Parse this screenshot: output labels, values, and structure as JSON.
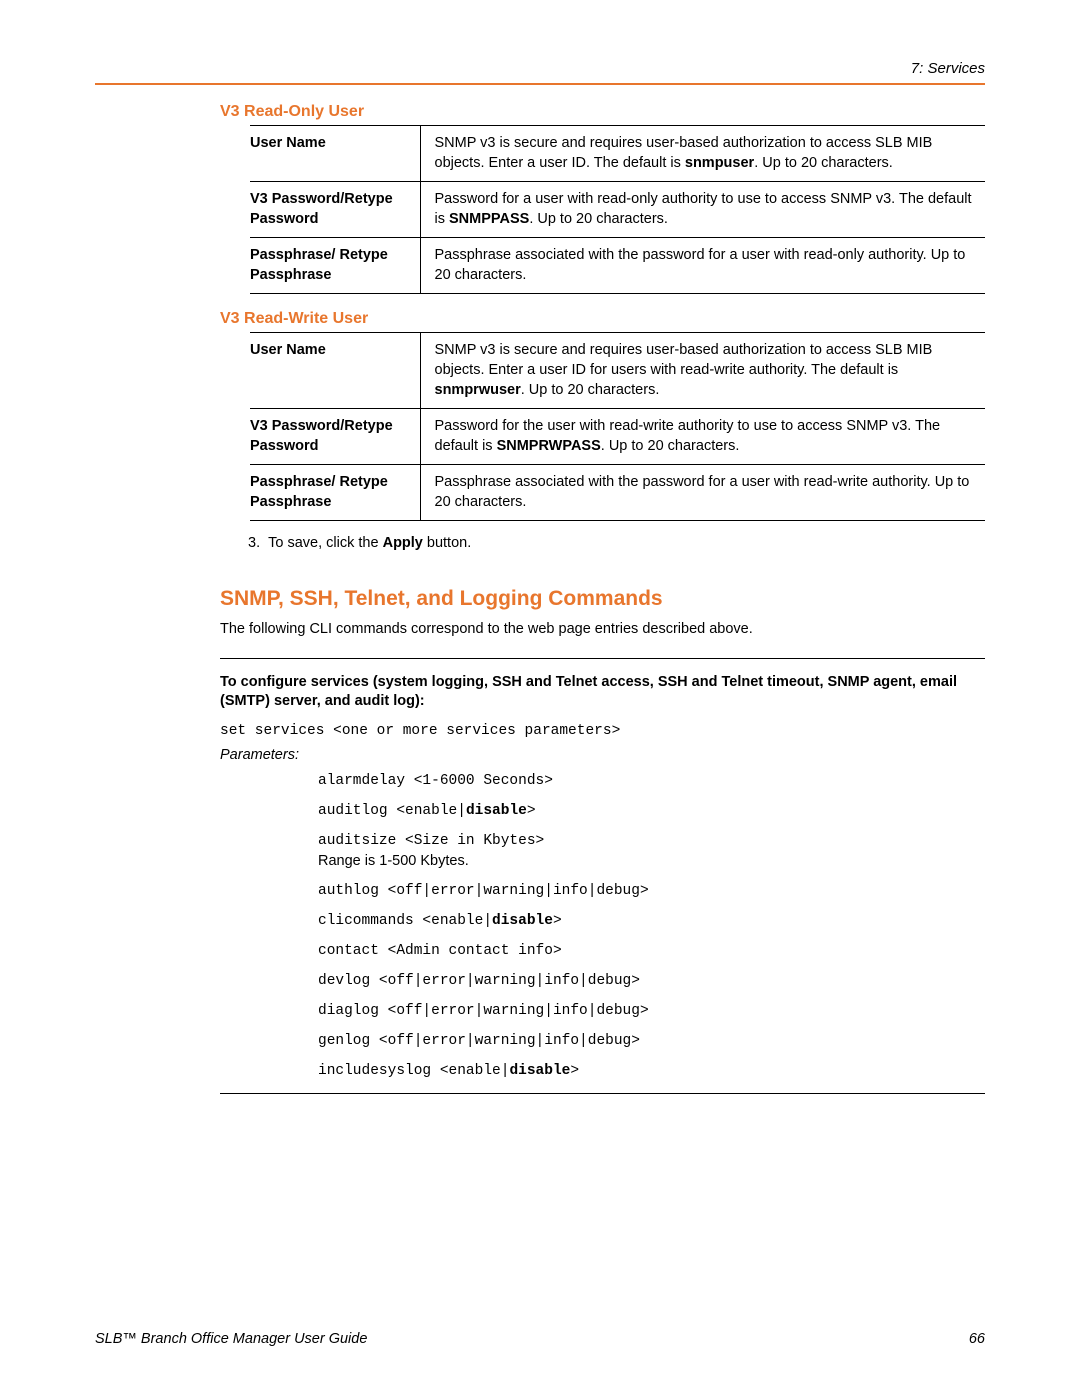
{
  "colors": {
    "accent": "#e8762d",
    "text": "#000000",
    "background": "#ffffff"
  },
  "typography": {
    "body_fontsize_pt": 11,
    "heading_fontsize_pt": 16,
    "section_title_fontsize_pt": 12,
    "code_font": "Courier New"
  },
  "header": {
    "chapter": "7: Services"
  },
  "sections": {
    "readonly": {
      "title": "V3 Read-Only User",
      "rows": [
        {
          "label": "User Name",
          "value_html": "SNMP v3 is secure and requires user-based authorization to access SLB MIB objects. Enter a user ID. The default is <b>snmpuser</b>. Up to 20 characters."
        },
        {
          "label": "V3 Password/Retype Password",
          "value_html": "Password for a user with read-only authority to use to access SNMP v3. The default is <b>SNMPPASS</b>. Up to 20 characters."
        },
        {
          "label": "Passphrase/ Retype Passphrase",
          "value_html": "Passphrase associated with the password for a user with read-only authority. Up to 20 characters."
        }
      ]
    },
    "readwrite": {
      "title": "V3 Read-Write User",
      "rows": [
        {
          "label": "User Name",
          "value_html": "SNMP v3 is secure and requires user-based authorization to access SLB MIB objects. Enter a user ID for users with read-write authority. The default is <b>snmprwuser</b>. Up to 20 characters."
        },
        {
          "label": "V3 Password/Retype Password",
          "value_html": "Password for the user with read-write authority to use to access SNMP v3. The default is <b>SNMPRWPASS</b>. Up to 20 characters."
        },
        {
          "label": "Passphrase/ Retype Passphrase",
          "value_html": "Passphrase associated with the password for a user with read-write authority. Up to 20 characters."
        }
      ]
    }
  },
  "step_html": "3.&nbsp;&nbsp;To save, click the <b>Apply</b> button.",
  "commands": {
    "heading": "SNMP, SSH, Telnet, and Logging Commands",
    "intro": "The following CLI commands correspond to the web page entries described above.",
    "config_intro": "To configure services (system logging, SSH and Telnet access, SSH and Telnet timeout, SNMP agent, email (SMTP) server, and audit log):",
    "set_cmd": "set services <one or more services parameters>",
    "params_label": "Parameters:",
    "params": [
      {
        "code": "alarmdelay <1-6000 Seconds>"
      },
      {
        "code_html": "auditlog <enable|<b>disable</b>>"
      },
      {
        "code": "auditsize <Size in Kbytes>",
        "note": "Range is 1-500 Kbytes."
      },
      {
        "code": "authlog <off|error|warning|info|debug>"
      },
      {
        "code_html": "clicommands <enable|<b>disable</b>>"
      },
      {
        "code": "contact <Admin contact info>"
      },
      {
        "code": "devlog <off|error|warning|info|debug>"
      },
      {
        "code": "diaglog <off|error|warning|info|debug>"
      },
      {
        "code": "genlog <off|error|warning|info|debug>"
      },
      {
        "code_html": "includesyslog <enable|<b>disable</b>>"
      }
    ]
  },
  "footer": {
    "title": "SLB™ Branch Office Manager User Guide",
    "page": "66"
  }
}
